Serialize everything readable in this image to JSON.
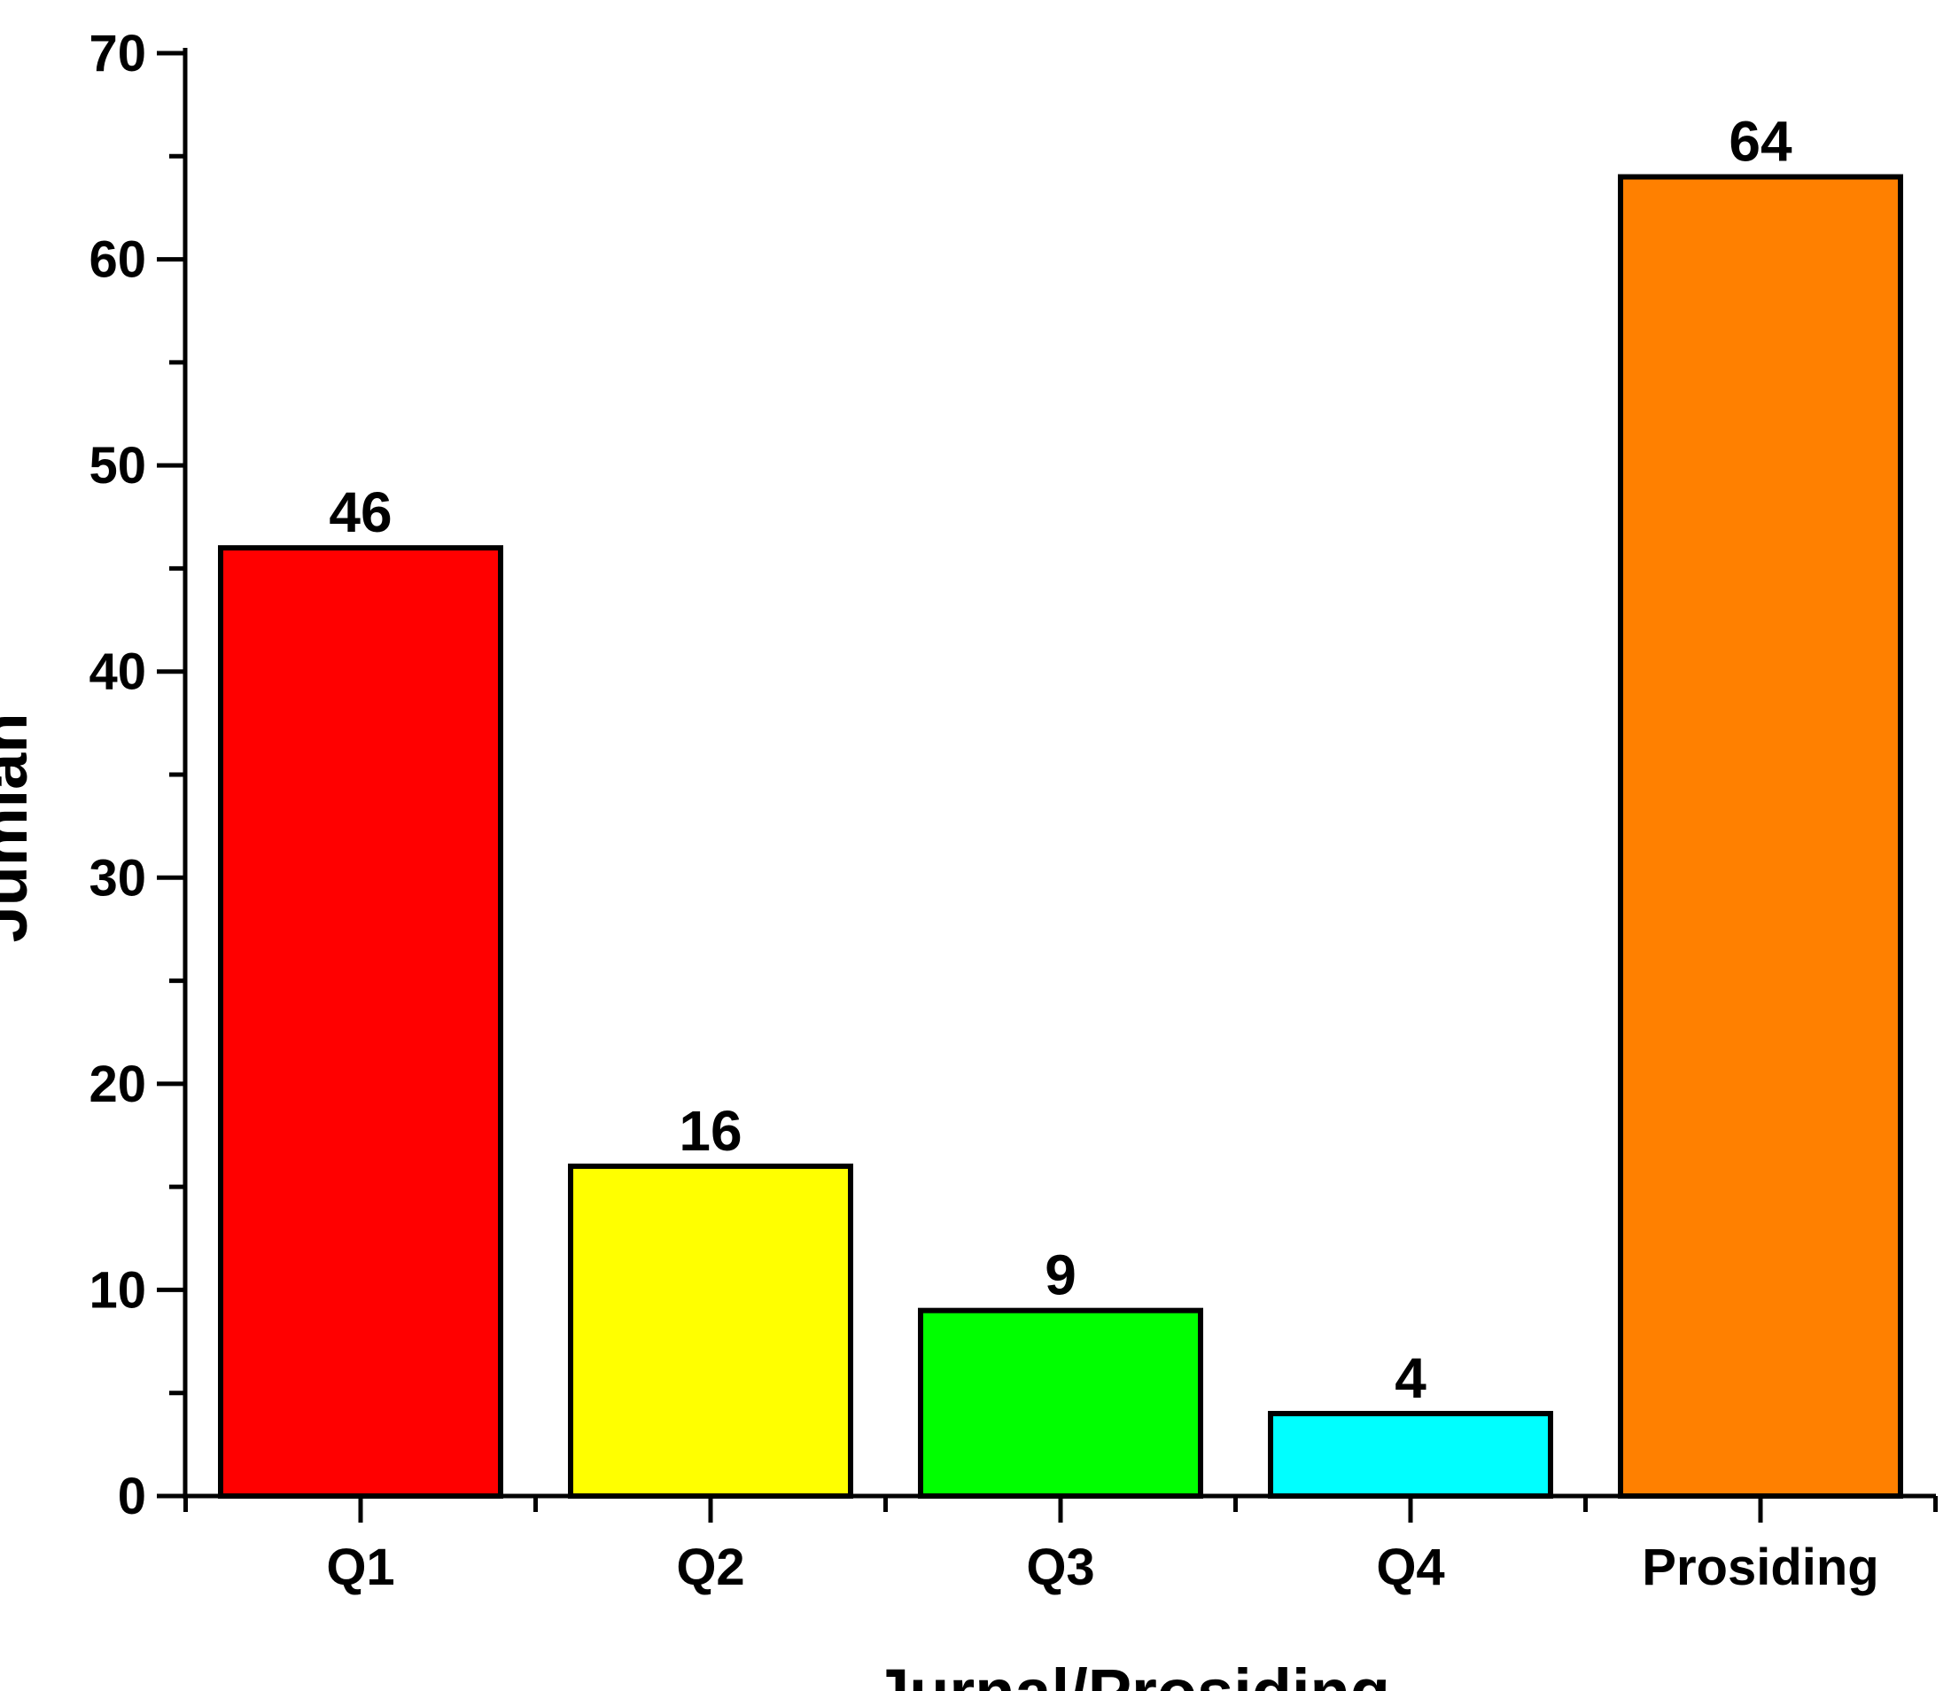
{
  "chart_data": {
    "type": "bar",
    "title": "",
    "xlabel": "Jurnal/Prosiding",
    "ylabel": "Jumlah",
    "categories": [
      "Q1",
      "Q2",
      "Q3",
      "Q4",
      "Prosiding"
    ],
    "values": [
      46,
      16,
      9,
      4,
      64
    ],
    "data_labels": [
      "46",
      "16",
      "9",
      "4",
      "64"
    ],
    "colors": [
      "#ff0000",
      "#ffff00",
      "#00ff00",
      "#00ffff",
      "#ff8000"
    ],
    "ylim": [
      0,
      70
    ],
    "yticks": [
      0,
      10,
      20,
      30,
      40,
      50,
      60,
      70
    ],
    "ytick_labels": [
      "0",
      "10",
      "20",
      "30",
      "40",
      "50",
      "60",
      "70"
    ],
    "grid": false,
    "legend": "none"
  }
}
